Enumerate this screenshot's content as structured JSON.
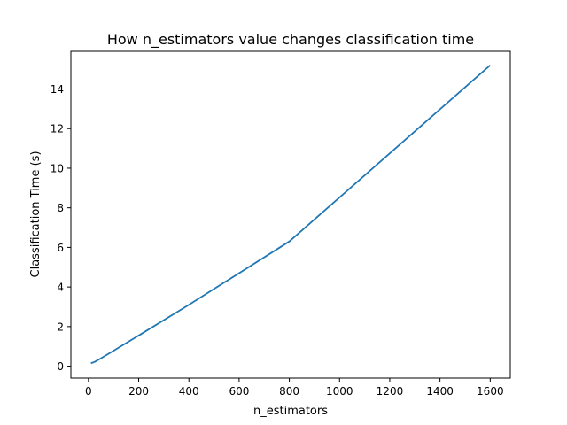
{
  "chart_data": {
    "type": "line",
    "title": "How n_estimators value changes classification time",
    "xlabel": "n_estimators",
    "ylabel": "Classification Time (s)",
    "xlim": [
      -70,
      1680
    ],
    "ylim": [
      -0.6,
      15.9
    ],
    "xticks": [
      0,
      200,
      400,
      600,
      800,
      1000,
      1200,
      1400,
      1600
    ],
    "yticks": [
      0,
      2,
      4,
      6,
      8,
      10,
      12,
      14
    ],
    "grid": false,
    "series": [
      {
        "color": "#1f77b4",
        "x": [
          10,
          25,
          50,
          100,
          200,
          400,
          800,
          1600
        ],
        "y": [
          0.15,
          0.22,
          0.4,
          0.78,
          1.55,
          3.1,
          6.3,
          15.2
        ]
      }
    ]
  }
}
